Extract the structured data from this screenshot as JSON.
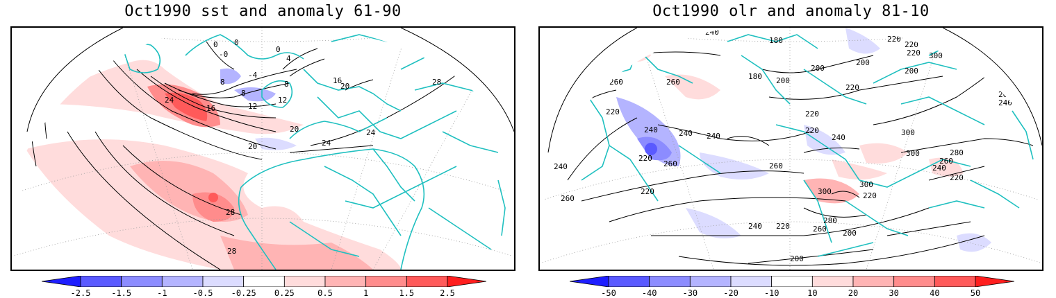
{
  "left_panel": {
    "title": "Oct1990 sst and anomaly 61-90",
    "colorbar_labels": [
      "-2.5",
      "-1.5",
      "-1",
      "-0.5",
      "-0.25",
      "0.25",
      "0.5",
      "1",
      "1.5",
      "2.5"
    ],
    "colorbar_colors": [
      "#1e1eff",
      "#5a5aff",
      "#8c8cff",
      "#b4b4ff",
      "#dcdcff",
      "#ffffff",
      "#ffdcdc",
      "#ffb4b4",
      "#ff8c8c",
      "#ff5a5a",
      "#ff1e1e"
    ],
    "contour_labels": [
      "28",
      "24",
      "0",
      "0",
      "-0",
      "0",
      "4",
      "-4",
      "8",
      "8",
      "8",
      "12",
      "16",
      "24",
      "12",
      "16",
      "20",
      "20",
      "20",
      "24",
      "24",
      "28",
      "28",
      "28"
    ]
  },
  "right_panel": {
    "title": "Oct1990 olr and anomaly 81-10",
    "colorbar_labels": [
      "-50",
      "-40",
      "-30",
      "-20",
      "-10",
      "10",
      "20",
      "30",
      "40",
      "50"
    ],
    "colorbar_colors": [
      "#1e1eff",
      "#5a5aff",
      "#8c8cff",
      "#b4b4ff",
      "#dcdcff",
      "#ffffff",
      "#ffdcdc",
      "#ffb4b4",
      "#ff8c8c",
      "#ff5a5a",
      "#ff1e1e"
    ],
    "contour_labels": [
      "260",
      "220",
      "240",
      "220",
      "260",
      "200",
      "240",
      "180",
      "240",
      "240",
      "220",
      "220",
      "300",
      "220",
      "260",
      "260",
      "200",
      "180",
      "200",
      "200",
      "240",
      "220",
      "240",
      "220",
      "220",
      "300",
      "260",
      "240",
      "220",
      "200",
      "240",
      "220",
      "260",
      "240",
      "300",
      "280",
      "260",
      "260",
      "240",
      "220",
      "300",
      "300",
      "220",
      "240",
      "220",
      "280",
      "260",
      "240",
      "220",
      "260",
      "200",
      "200"
    ]
  },
  "colors": {
    "coastline": "#20c0c0",
    "contour": "#000000",
    "grid": "#9a9a9a"
  }
}
